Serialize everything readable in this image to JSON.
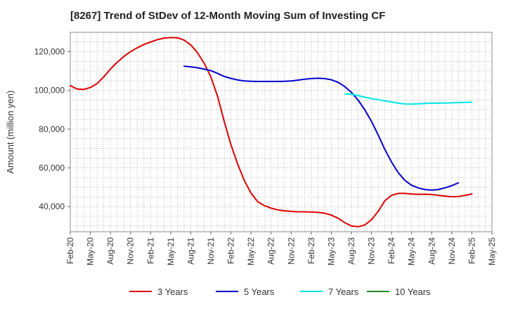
{
  "chart_data": {
    "type": "line",
    "title": "[8267]  Trend of StDev of 12-Month Moving Sum of Investing CF",
    "ylabel": "Amount (million yen)",
    "xlabel": "",
    "ylim": [
      27000,
      130000
    ],
    "yticks": [
      40000,
      60000,
      80000,
      100000,
      120000
    ],
    "ytick_labels": [
      "40,000",
      "60,000",
      "80,000",
      "100,000",
      "120,000"
    ],
    "x_range": [
      "2020-02",
      "2025-05"
    ],
    "xtick_labels": [
      "Feb-20",
      "May-20",
      "Aug-20",
      "Nov-20",
      "Feb-21",
      "May-21",
      "Aug-21",
      "Nov-21",
      "Feb-22",
      "May-22",
      "Aug-22",
      "Nov-22",
      "Feb-23",
      "May-23",
      "Aug-23",
      "Nov-23",
      "Feb-24",
      "May-24",
      "Aug-24",
      "Nov-24",
      "Feb-25",
      "May-25"
    ],
    "grid": true,
    "legend_position": "bottom",
    "series": [
      {
        "name": "3 Years",
        "color": "#dd0000",
        "points": [
          [
            "2020-02",
            102500
          ],
          [
            "2020-03",
            100700
          ],
          [
            "2020-04",
            100500
          ],
          [
            "2020-05",
            101500
          ],
          [
            "2020-06",
            103500
          ],
          [
            "2020-07",
            107000
          ],
          [
            "2020-08",
            111000
          ],
          [
            "2020-09",
            114500
          ],
          [
            "2020-10",
            117500
          ],
          [
            "2020-11",
            120000
          ],
          [
            "2020-12",
            122000
          ],
          [
            "2021-01",
            123700
          ],
          [
            "2021-02",
            125000
          ],
          [
            "2021-03",
            126200
          ],
          [
            "2021-04",
            127000
          ],
          [
            "2021-05",
            127300
          ],
          [
            "2021-06",
            127200
          ],
          [
            "2021-07",
            126000
          ],
          [
            "2021-08",
            123500
          ],
          [
            "2021-09",
            119500
          ],
          [
            "2021-10",
            114000
          ],
          [
            "2021-11",
            107000
          ],
          [
            "2021-12",
            97000
          ],
          [
            "2022-01",
            84000
          ],
          [
            "2022-02",
            72000
          ],
          [
            "2022-03",
            62000
          ],
          [
            "2022-04",
            53500
          ],
          [
            "2022-05",
            47000
          ],
          [
            "2022-06",
            42500
          ],
          [
            "2022-07",
            40500
          ],
          [
            "2022-08",
            39200
          ],
          [
            "2022-09",
            38300
          ],
          [
            "2022-10",
            37800
          ],
          [
            "2022-11",
            37500
          ],
          [
            "2022-12",
            37300
          ],
          [
            "2023-01",
            37300
          ],
          [
            "2023-02",
            37200
          ],
          [
            "2023-03",
            37000
          ],
          [
            "2023-04",
            36600
          ],
          [
            "2023-05",
            35600
          ],
          [
            "2023-06",
            34000
          ],
          [
            "2023-07",
            31700
          ],
          [
            "2023-08",
            30000
          ],
          [
            "2023-09",
            29600
          ],
          [
            "2023-10",
            30500
          ],
          [
            "2023-11",
            33200
          ],
          [
            "2023-12",
            37500
          ],
          [
            "2024-01",
            43000
          ],
          [
            "2024-02",
            45800
          ],
          [
            "2024-03",
            46800
          ],
          [
            "2024-04",
            46800
          ],
          [
            "2024-05",
            46500
          ],
          [
            "2024-06",
            46300
          ],
          [
            "2024-07",
            46400
          ],
          [
            "2024-08",
            46200
          ],
          [
            "2024-09",
            45800
          ],
          [
            "2024-10",
            45400
          ],
          [
            "2024-11",
            45100
          ],
          [
            "2024-12",
            45200
          ],
          [
            "2025-01",
            45800
          ],
          [
            "2025-02",
            46500
          ]
        ]
      },
      {
        "name": "5 Years",
        "color": "#0000cc",
        "points": [
          [
            "2021-07",
            112500
          ],
          [
            "2021-08",
            112200
          ],
          [
            "2021-09",
            111700
          ],
          [
            "2021-10",
            111000
          ],
          [
            "2021-11",
            110200
          ],
          [
            "2021-12",
            108800
          ],
          [
            "2022-01",
            107200
          ],
          [
            "2022-02",
            106200
          ],
          [
            "2022-03",
            105400
          ],
          [
            "2022-04",
            104900
          ],
          [
            "2022-05",
            104700
          ],
          [
            "2022-06",
            104600
          ],
          [
            "2022-07",
            104600
          ],
          [
            "2022-08",
            104600
          ],
          [
            "2022-09",
            104600
          ],
          [
            "2022-10",
            104700
          ],
          [
            "2022-11",
            104900
          ],
          [
            "2022-12",
            105300
          ],
          [
            "2023-01",
            105800
          ],
          [
            "2023-02",
            106100
          ],
          [
            "2023-03",
            106300
          ],
          [
            "2023-04",
            106100
          ],
          [
            "2023-05",
            105500
          ],
          [
            "2023-06",
            104200
          ],
          [
            "2023-07",
            102000
          ],
          [
            "2023-08",
            99000
          ],
          [
            "2023-09",
            95000
          ],
          [
            "2023-10",
            90000
          ],
          [
            "2023-11",
            84000
          ],
          [
            "2023-12",
            77000
          ],
          [
            "2024-01",
            69500
          ],
          [
            "2024-02",
            63000
          ],
          [
            "2024-03",
            57500
          ],
          [
            "2024-04",
            53500
          ],
          [
            "2024-05",
            51000
          ],
          [
            "2024-06",
            49600
          ],
          [
            "2024-07",
            48800
          ],
          [
            "2024-08",
            48500
          ],
          [
            "2024-09",
            48800
          ],
          [
            "2024-10",
            49700
          ],
          [
            "2024-11",
            50800
          ],
          [
            "2024-12",
            52300
          ]
        ]
      },
      {
        "name": "7 Years",
        "color": "#00e5e5",
        "points": [
          [
            "2023-07",
            98200
          ],
          [
            "2023-08",
            98000
          ],
          [
            "2023-09",
            97300
          ],
          [
            "2023-10",
            96500
          ],
          [
            "2023-11",
            95800
          ],
          [
            "2023-12",
            95200
          ],
          [
            "2024-01",
            94600
          ],
          [
            "2024-02",
            94000
          ],
          [
            "2024-03",
            93400
          ],
          [
            "2024-04",
            93000
          ],
          [
            "2024-05",
            92900
          ],
          [
            "2024-06",
            93100
          ],
          [
            "2024-07",
            93300
          ],
          [
            "2024-08",
            93400
          ],
          [
            "2024-09",
            93400
          ],
          [
            "2024-10",
            93500
          ],
          [
            "2024-11",
            93600
          ],
          [
            "2024-12",
            93700
          ],
          [
            "2025-01",
            93800
          ],
          [
            "2025-02",
            93900
          ]
        ]
      },
      {
        "name": "10 Years",
        "color": "#228b22",
        "points": []
      }
    ]
  }
}
